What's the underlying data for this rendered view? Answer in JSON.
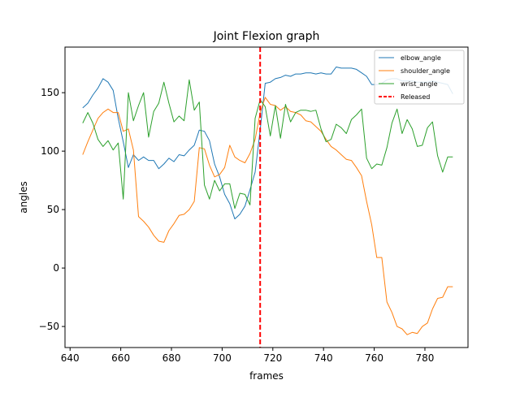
{
  "chart_data": {
    "type": "line",
    "title": "Joint Flexion graph",
    "xlabel": "frames",
    "ylabel": "angles",
    "xlim": [
      638,
      797
    ],
    "ylim": [
      -68,
      189
    ],
    "xticks": [
      640,
      660,
      680,
      700,
      720,
      740,
      760,
      780
    ],
    "yticks": [
      -50,
      0,
      50,
      100,
      150
    ],
    "grid": false,
    "legend_position": "top-right",
    "series": [
      {
        "name": "elbow_angle",
        "color": "#1f77b4",
        "x": [
          645,
          647,
          649,
          651,
          653,
          655,
          657,
          659,
          661,
          663,
          665,
          667,
          669,
          671,
          673,
          675,
          677,
          679,
          681,
          683,
          685,
          687,
          689,
          691,
          693,
          695,
          697,
          699,
          701,
          703,
          705,
          707,
          709,
          711,
          713,
          715,
          717,
          719,
          721,
          723,
          725,
          727,
          729,
          731,
          733,
          735,
          737,
          739,
          741,
          743,
          745,
          747,
          749,
          751,
          753,
          755,
          757,
          759,
          761,
          763,
          765,
          767,
          769,
          771,
          773,
          775,
          777,
          779,
          781,
          783,
          785,
          787,
          789,
          791
        ],
        "y": [
          137,
          141,
          148,
          154,
          162,
          159,
          152,
          128,
          108,
          86,
          97,
          92,
          95,
          92,
          92,
          85,
          89,
          94,
          91,
          97,
          96,
          101,
          105,
          118,
          117,
          109,
          89,
          78,
          63,
          55,
          42,
          46,
          53,
          67,
          82,
          118,
          158,
          159,
          162,
          163,
          165,
          164,
          166,
          166,
          167,
          167,
          166,
          167,
          166,
          166,
          172,
          171,
          171,
          171,
          170,
          167,
          164,
          157,
          157,
          158,
          161,
          162,
          162,
          160,
          160,
          160,
          159,
          159,
          159,
          160,
          159,
          158,
          157,
          149
        ]
      },
      {
        "name": "shoulder_angle",
        "color": "#ff7f0e",
        "x": [
          645,
          647,
          649,
          651,
          653,
          655,
          657,
          659,
          661,
          663,
          665,
          667,
          669,
          671,
          673,
          675,
          677,
          679,
          681,
          683,
          685,
          687,
          689,
          691,
          693,
          695,
          697,
          699,
          701,
          703,
          705,
          707,
          709,
          711,
          713,
          715,
          717,
          719,
          721,
          723,
          725,
          727,
          729,
          731,
          733,
          735,
          737,
          739,
          741,
          743,
          745,
          747,
          749,
          751,
          753,
          755,
          757,
          759,
          761,
          763,
          765,
          767,
          769,
          771,
          773,
          775,
          777,
          779,
          781,
          783,
          785,
          787,
          789,
          791
        ],
        "y": [
          97,
          108,
          118,
          128,
          133,
          136,
          133,
          133,
          117,
          119,
          101,
          44,
          40,
          35,
          28,
          23,
          22,
          32,
          38,
          45,
          46,
          50,
          57,
          103,
          102,
          88,
          78,
          80,
          86,
          105,
          95,
          92,
          90,
          98,
          110,
          133,
          146,
          140,
          139,
          135,
          138,
          134,
          133,
          131,
          126,
          125,
          121,
          117,
          110,
          104,
          101,
          97,
          93,
          92,
          86,
          79,
          57,
          37,
          9,
          9,
          -29,
          -38,
          -50,
          -52,
          -57,
          -55,
          -56,
          -50,
          -47,
          -35,
          -26,
          -25,
          -16,
          -16
        ]
      },
      {
        "name": "wrist_angle",
        "color": "#2ca02c",
        "x": [
          645,
          647,
          649,
          651,
          653,
          655,
          657,
          659,
          661,
          663,
          665,
          667,
          669,
          671,
          673,
          675,
          677,
          679,
          681,
          683,
          685,
          687,
          689,
          691,
          693,
          695,
          697,
          699,
          701,
          703,
          705,
          707,
          709,
          711,
          713,
          715,
          717,
          719,
          721,
          723,
          725,
          727,
          729,
          731,
          733,
          735,
          737,
          739,
          741,
          743,
          745,
          747,
          749,
          751,
          753,
          755,
          757,
          759,
          761,
          763,
          765,
          767,
          769,
          771,
          773,
          775,
          777,
          779,
          781,
          783,
          785,
          787,
          789,
          791
        ],
        "y": [
          124,
          133,
          124,
          110,
          104,
          109,
          101,
          107,
          59,
          150,
          126,
          139,
          150,
          112,
          134,
          141,
          159,
          141,
          125,
          130,
          126,
          161,
          135,
          142,
          71,
          59,
          75,
          66,
          72,
          72,
          51,
          64,
          63,
          54,
          128,
          144,
          138,
          113,
          139,
          111,
          140,
          125,
          133,
          135,
          135,
          134,
          135,
          119,
          108,
          110,
          123,
          120,
          115,
          127,
          131,
          136,
          94,
          85,
          89,
          88,
          103,
          124,
          136,
          115,
          127,
          119,
          104,
          105,
          120,
          125,
          96,
          82,
          95,
          95
        ]
      },
      {
        "name": "Released",
        "color": "#ff0000",
        "style": "dashed",
        "vline_x": 715
      }
    ]
  }
}
